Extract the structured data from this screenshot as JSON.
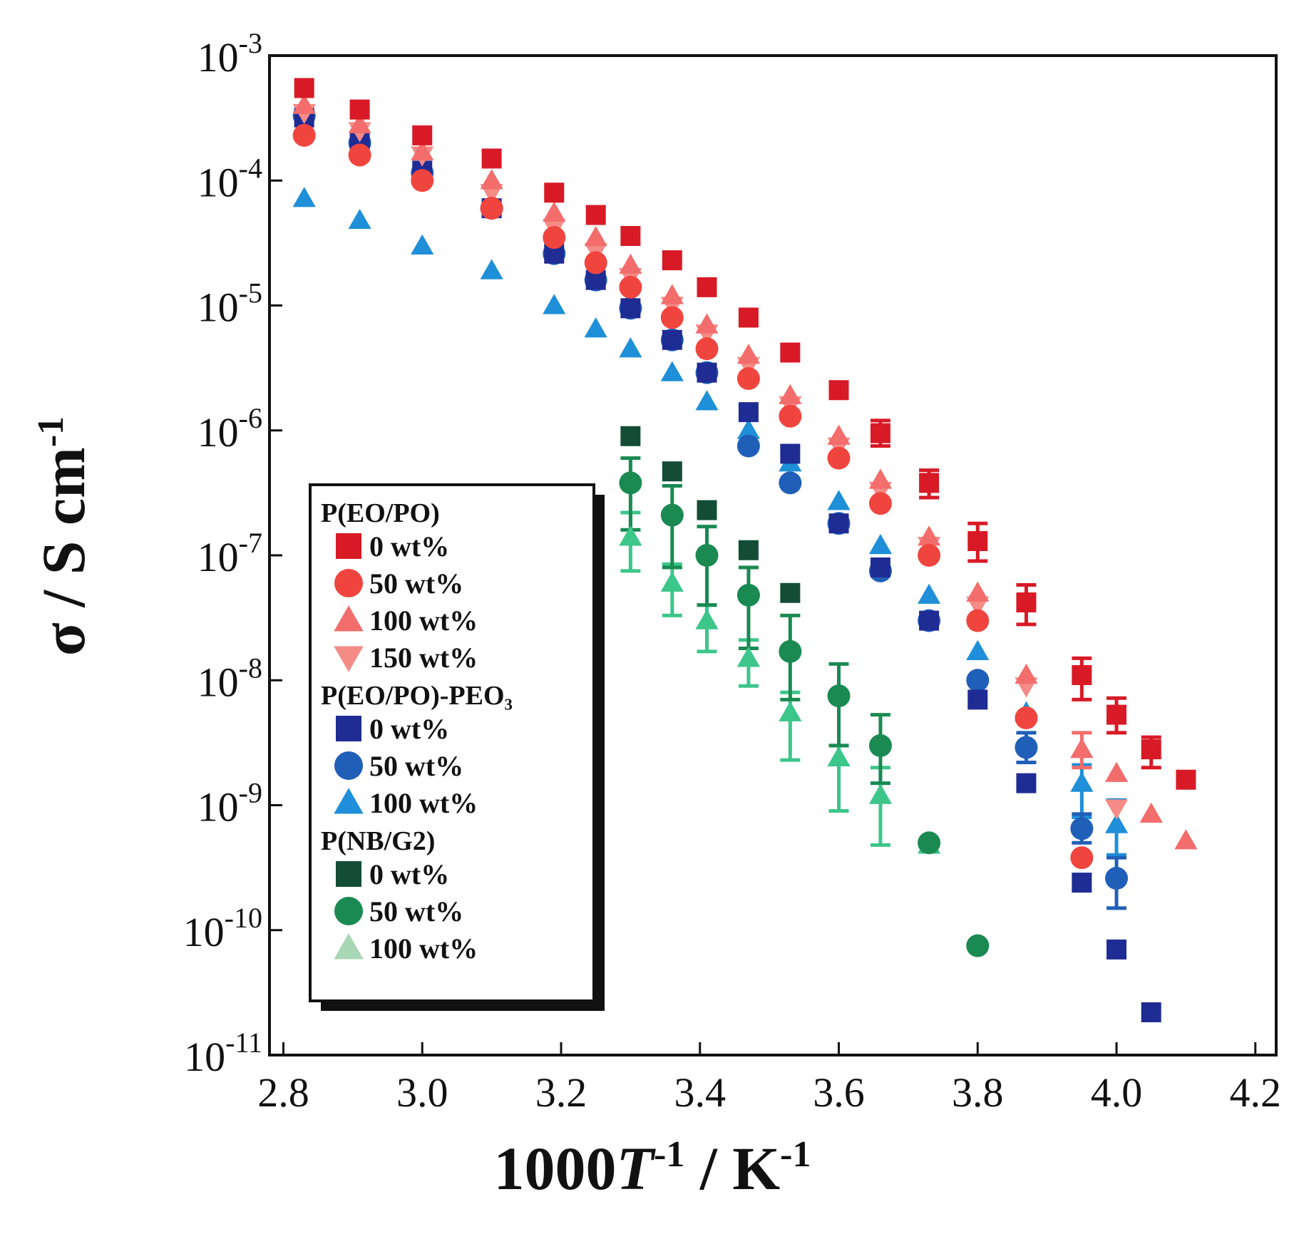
{
  "chart_data": {
    "type": "scatter",
    "title": "",
    "xlabel": {
      "prefix": "1000",
      "italic": "T",
      "sup1": "-1",
      "mid": " / K",
      "sup2": "-1"
    },
    "ylabel": {
      "prefix": "σ / S cm",
      "sup": "-1"
    },
    "xlim": [
      2.78,
      4.23
    ],
    "ylim_log10": [
      -11,
      -3
    ],
    "scale": {
      "x": "linear",
      "y": "log"
    },
    "x_ticks": [
      "2.8",
      "3.0",
      "3.2",
      "3.4",
      "3.6",
      "3.8",
      "4.0",
      "4.2"
    ],
    "y_ticks": [
      {
        "base": "10",
        "exp": "-3"
      },
      {
        "base": "10",
        "exp": "-4"
      },
      {
        "base": "10",
        "exp": "-5"
      },
      {
        "base": "10",
        "exp": "-6"
      },
      {
        "base": "10",
        "exp": "-7"
      },
      {
        "base": "10",
        "exp": "-8"
      },
      {
        "base": "10",
        "exp": "-9"
      },
      {
        "base": "10",
        "exp": "-10"
      },
      {
        "base": "10",
        "exp": "-11"
      }
    ],
    "legend_position": "bottom-left",
    "legend_groups": [
      {
        "title": "P(EO/PO)",
        "series": [
          0,
          1,
          2,
          3
        ]
      },
      {
        "title": "P(EO/PO)-PEO₃",
        "series": [
          4,
          5,
          6
        ]
      },
      {
        "title": "P(NB/G2)",
        "series": [
          7,
          8,
          9
        ]
      }
    ],
    "series": [
      {
        "name": "0 wt%",
        "group": "P(EO/PO)",
        "marker": "square",
        "color": "#d81a26",
        "x": [
          2.83,
          2.91,
          3.0,
          3.1,
          3.19,
          3.25,
          3.3,
          3.36,
          3.41,
          3.47,
          3.53,
          3.6,
          3.66,
          3.73,
          3.8,
          3.87,
          3.95,
          4.0,
          4.05,
          4.1
        ],
        "y": [
          0.00055,
          0.00037,
          0.00023,
          0.00015,
          8e-05,
          5.3e-05,
          3.6e-05,
          2.3e-05,
          1.4e-05,
          8e-06,
          4.2e-06,
          2.1e-06,
          9.5e-07,
          3.8e-07,
          1.3e-07,
          4.2e-08,
          1.1e-08,
          5.3e-09,
          2.8e-09,
          1.6e-09
        ],
        "err_low": [
          null,
          null,
          null,
          null,
          null,
          null,
          null,
          null,
          null,
          null,
          null,
          null,
          7.5e-07,
          2.9e-07,
          9e-08,
          2.8e-08,
          7e-09,
          3.8e-09,
          2e-09,
          null
        ],
        "err_high": [
          null,
          null,
          null,
          null,
          null,
          null,
          null,
          null,
          null,
          null,
          null,
          null,
          1.2e-06,
          4.8e-07,
          1.8e-07,
          5.8e-08,
          1.5e-08,
          7.2e-09,
          3.5e-09,
          null
        ]
      },
      {
        "name": "50 wt%",
        "group": "P(EO/PO)",
        "marker": "circle",
        "color": "#f0453f",
        "x": [
          2.83,
          2.91,
          3.0,
          3.1,
          3.19,
          3.25,
          3.3,
          3.36,
          3.41,
          3.47,
          3.53,
          3.6,
          3.66,
          3.73,
          3.8,
          3.87,
          3.95
        ],
        "y": [
          0.00023,
          0.00016,
          0.0001,
          6e-05,
          3.5e-05,
          2.2e-05,
          1.4e-05,
          8e-06,
          4.5e-06,
          2.6e-06,
          1.3e-06,
          6e-07,
          2.6e-07,
          1e-07,
          3e-08,
          5e-09,
          3.8e-10
        ]
      },
      {
        "name": "100 wt%",
        "group": "P(EO/PO)",
        "marker": "triangle-up",
        "color": "#f26d6b",
        "x": [
          2.83,
          2.91,
          3.0,
          3.1,
          3.19,
          3.25,
          3.3,
          3.36,
          3.41,
          3.47,
          3.53,
          3.6,
          3.66,
          3.73,
          3.8,
          3.87,
          3.95,
          4.0,
          4.05,
          4.1
        ],
        "y": [
          0.0004,
          0.00028,
          0.00017,
          0.0001,
          5.5e-05,
          3.5e-05,
          2.1e-05,
          1.2e-05,
          7e-06,
          4e-06,
          1.9e-06,
          9e-07,
          4e-07,
          1.4e-07,
          5e-08,
          1.1e-08,
          2.8e-09,
          1.8e-09,
          8.5e-10,
          5.2e-10
        ],
        "err_low": [
          null,
          null,
          null,
          null,
          null,
          null,
          null,
          null,
          null,
          null,
          null,
          null,
          null,
          null,
          null,
          null,
          2e-09,
          null,
          null,
          null
        ],
        "err_high": [
          null,
          null,
          null,
          null,
          null,
          null,
          null,
          null,
          null,
          null,
          null,
          null,
          null,
          null,
          null,
          null,
          3.8e-09,
          null,
          null,
          null
        ]
      },
      {
        "name": "150 wt%",
        "group": "P(EO/PO)",
        "marker": "triangle-down",
        "color": "#f58b87",
        "x": [
          2.83,
          2.91,
          3.0,
          3.1,
          3.19,
          3.25,
          3.3,
          3.36,
          3.41,
          3.47,
          3.53,
          3.6,
          3.66,
          3.73,
          3.8,
          3.87,
          4.0
        ],
        "y": [
          0.00035,
          0.00025,
          0.00016,
          8e-05,
          4.2e-05,
          2.7e-05,
          1.7e-05,
          1e-05,
          6e-06,
          3.3e-06,
          1.6e-06,
          7.5e-07,
          3.3e-07,
          1.2e-07,
          4e-08,
          9e-09,
          9.5e-10
        ]
      },
      {
        "name": "0 wt%",
        "group": "P(EO/PO)-PEO3",
        "marker": "square",
        "color": "#1f2c94",
        "x": [
          2.83,
          2.91,
          3.0,
          3.1,
          3.19,
          3.25,
          3.3,
          3.36,
          3.41,
          3.47,
          3.53,
          3.6,
          3.66,
          3.73,
          3.8,
          3.87,
          3.95,
          4.0,
          4.05
        ],
        "y": [
          0.00032,
          0.00021,
          0.00012,
          6e-05,
          2.6e-05,
          1.6e-05,
          9.5e-06,
          5.3e-06,
          2.9e-06,
          1.4e-06,
          6.5e-07,
          1.8e-07,
          8e-08,
          3e-08,
          7e-09,
          1.5e-09,
          2.4e-10,
          7e-11,
          2.2e-11
        ]
      },
      {
        "name": "50 wt%",
        "group": "P(EO/PO)-PEO3",
        "marker": "circle",
        "color": "#1f5fb8",
        "x": [
          2.83,
          2.91,
          3.0,
          3.1,
          3.19,
          3.25,
          3.3,
          3.36,
          3.41,
          3.47,
          3.53,
          3.6,
          3.66,
          3.73,
          3.8,
          3.87,
          3.95,
          4.0
        ],
        "y": [
          0.00033,
          0.0002,
          0.000115,
          6e-05,
          2.6e-05,
          1.6e-05,
          9.5e-06,
          5.3e-06,
          2.9e-06,
          7.5e-07,
          3.8e-07,
          1.8e-07,
          7.5e-08,
          3e-08,
          1e-08,
          2.9e-09,
          6.5e-10,
          2.6e-10
        ],
        "err_low": [
          null,
          null,
          null,
          null,
          null,
          null,
          null,
          null,
          null,
          null,
          null,
          null,
          null,
          null,
          null,
          2.2e-09,
          5e-10,
          1.5e-10
        ],
        "err_high": [
          null,
          null,
          null,
          null,
          null,
          null,
          null,
          null,
          null,
          null,
          null,
          null,
          null,
          null,
          null,
          3.8e-09,
          8.5e-10,
          3.8e-10
        ]
      },
      {
        "name": "100 wt%",
        "group": "P(EO/PO)-PEO3",
        "marker": "triangle-up",
        "color": "#1e8fd8",
        "x": [
          2.83,
          2.91,
          3.0,
          3.1,
          3.19,
          3.25,
          3.3,
          3.36,
          3.41,
          3.47,
          3.53,
          3.6,
          3.66,
          3.73,
          3.8,
          3.87,
          3.95,
          4.0
        ],
        "y": [
          7.2e-05,
          4.8e-05,
          3e-05,
          1.9e-05,
          1e-05,
          6.5e-06,
          4.5e-06,
          2.9e-06,
          1.7e-06,
          1e-06,
          5.5e-07,
          2.7e-07,
          1.2e-07,
          4.8e-08,
          1.7e-08,
          5.5e-09,
          1.5e-09,
          7e-10
        ],
        "err_low": [
          null,
          null,
          null,
          null,
          null,
          null,
          null,
          null,
          null,
          null,
          null,
          null,
          null,
          null,
          null,
          null,
          8e-10,
          4e-10
        ],
        "err_high": [
          null,
          null,
          null,
          null,
          null,
          null,
          null,
          null,
          null,
          null,
          null,
          null,
          null,
          null,
          null,
          null,
          2.1e-09,
          1.1e-09
        ]
      },
      {
        "name": "0 wt%",
        "group": "P(NB/G2)",
        "marker": "square",
        "color": "#134d36",
        "x": [
          3.3,
          3.36,
          3.41,
          3.47,
          3.53
        ],
        "y": [
          9e-07,
          4.7e-07,
          2.3e-07,
          1.1e-07,
          5e-08
        ]
      },
      {
        "name": "50 wt%",
        "group": "P(NB/G2)",
        "marker": "circle",
        "color": "#1a8a52",
        "x": [
          3.3,
          3.36,
          3.41,
          3.47,
          3.53,
          3.6,
          3.66,
          3.73,
          3.8
        ],
        "y": [
          3.8e-07,
          2.1e-07,
          1e-07,
          4.8e-08,
          1.7e-08,
          7.5e-09,
          3e-09,
          5e-10,
          7.5e-11
        ],
        "err_low": [
          1.6e-07,
          8e-08,
          4e-08,
          1.8e-08,
          7e-09,
          3e-09,
          1.5e-09,
          null,
          null
        ],
        "err_high": [
          6e-07,
          3.6e-07,
          1.7e-07,
          8e-08,
          3.3e-08,
          1.35e-08,
          5.3e-09,
          null,
          null
        ]
      },
      {
        "name": "100 wt%",
        "group": "P(NB/G2)",
        "marker": "triangle-up",
        "color": "#3cc68a",
        "legend_color": "#a9d6b5",
        "x": [
          3.3,
          3.36,
          3.41,
          3.47,
          3.53,
          3.6,
          3.66,
          3.73
        ],
        "y": [
          1.4e-07,
          6e-08,
          3e-08,
          1.5e-08,
          5.5e-09,
          2.4e-09,
          1.2e-09,
          4.8e-10
        ],
        "err_low": [
          7.5e-08,
          3.3e-08,
          1.7e-08,
          9e-09,
          2.3e-09,
          9e-10,
          4.8e-10,
          null
        ],
        "err_high": [
          2.2e-07,
          8.5e-08,
          4e-08,
          2.1e-08,
          8e-09,
          3e-09,
          2e-09,
          null
        ]
      }
    ]
  }
}
